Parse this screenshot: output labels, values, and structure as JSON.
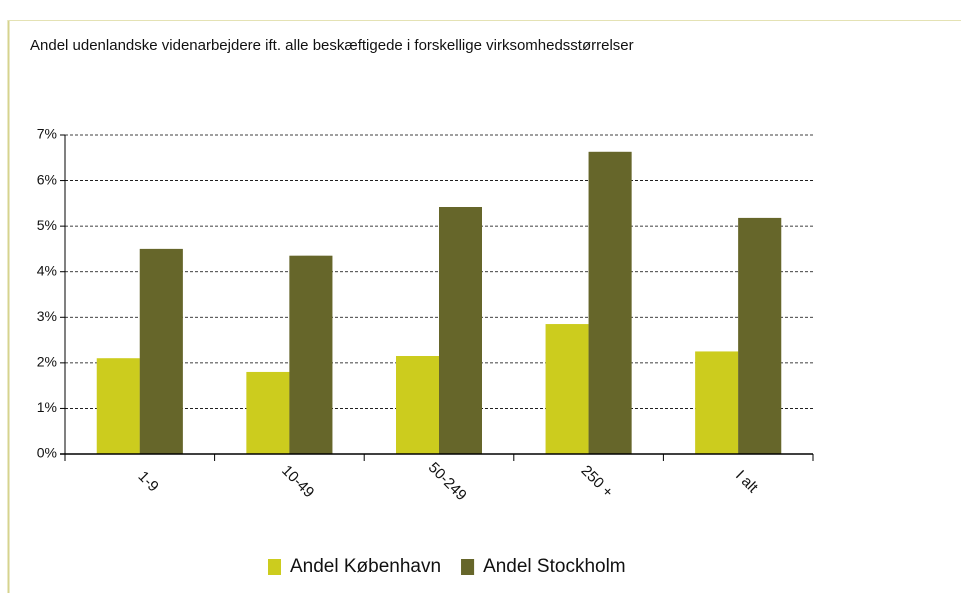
{
  "chart_data": {
    "type": "bar",
    "title": "Andel udenlandske videnarbejdere ift. alle beskæftigede i forskellige virksomhedsstørrelser",
    "categories": [
      "1-9",
      "10-49",
      "50-249",
      "250 +",
      "I alt"
    ],
    "series": [
      {
        "name": "Andel København",
        "color": "#cccc1e",
        "values": [
          2.1,
          1.8,
          2.15,
          2.85,
          2.25
        ]
      },
      {
        "name": "Andel Stockholm",
        "color": "#66662a",
        "values": [
          4.5,
          4.35,
          5.42,
          6.63,
          5.18
        ]
      }
    ],
    "ylim": [
      0,
      7
    ],
    "yticks": [
      {
        "value": 0,
        "label": "0%"
      },
      {
        "value": 1,
        "label": "1%"
      },
      {
        "value": 2,
        "label": "2%"
      },
      {
        "value": 3,
        "label": "3%"
      },
      {
        "value": 4,
        "label": "4%"
      },
      {
        "value": 5,
        "label": "5%"
      },
      {
        "value": 6,
        "label": "6%"
      },
      {
        "value": 7,
        "label": "7%"
      }
    ],
    "grid": true,
    "legend": "bottom"
  }
}
